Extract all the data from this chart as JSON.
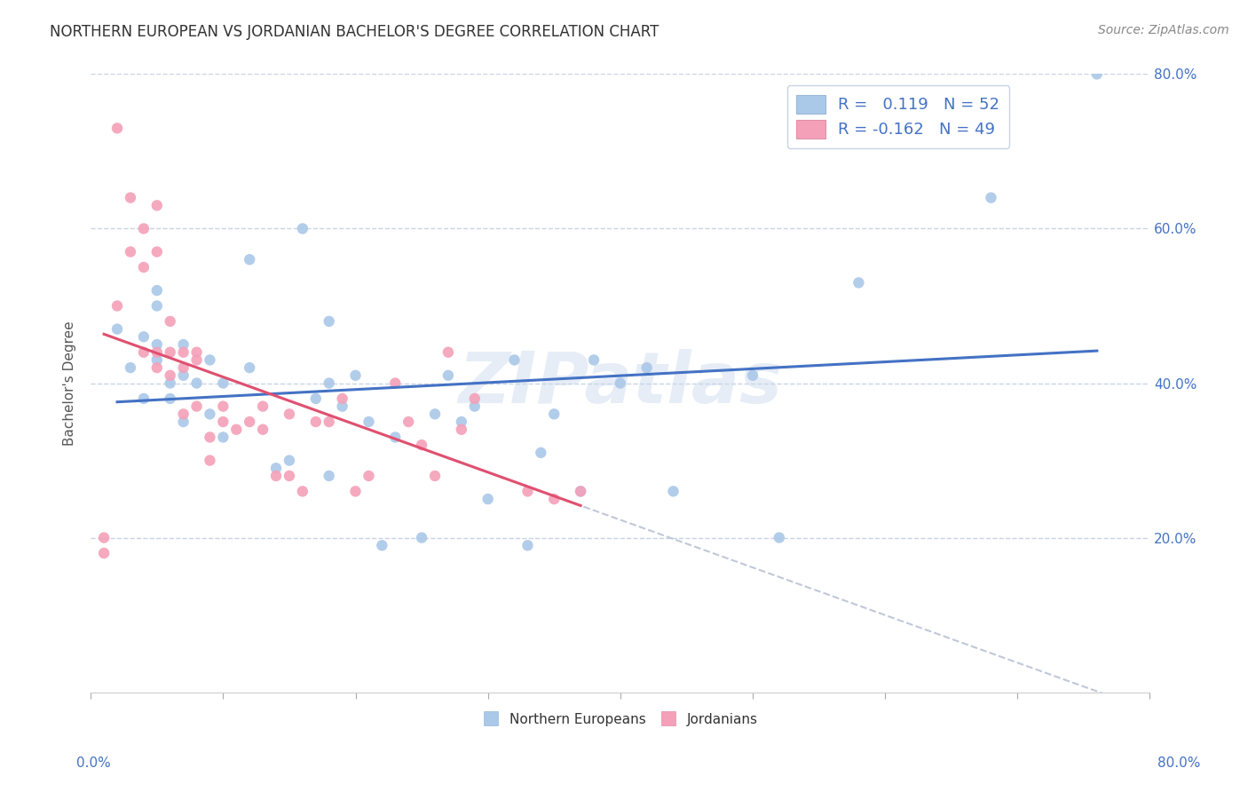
{
  "title": "NORTHERN EUROPEAN VS JORDANIAN BACHELOR'S DEGREE CORRELATION CHART",
  "source": "Source: ZipAtlas.com",
  "ylabel": "Bachelor's Degree",
  "xlim": [
    0.0,
    0.8
  ],
  "ylim": [
    0.0,
    0.8
  ],
  "xtick_vals": [
    0.0,
    0.1,
    0.2,
    0.3,
    0.4,
    0.5,
    0.6,
    0.7,
    0.8
  ],
  "ytick_vals": [
    0.2,
    0.4,
    0.6,
    0.8
  ],
  "ytick_labels": [
    "20.0%",
    "40.0%",
    "60.0%",
    "80.0%"
  ],
  "blue_color": "#aac8e8",
  "pink_color": "#f4a0b8",
  "blue_line_color": "#4472c4",
  "pink_line_color": "#e05070",
  "dashed_line_color": "#c0c8d8",
  "legend_blue_label": "R =   0.119   N = 52",
  "legend_pink_label": "R = -0.162   N = 49",
  "legend_bottom_blue": "Northern Europeans",
  "legend_bottom_pink": "Jordanians",
  "blue_scatter_x": [
    0.02,
    0.03,
    0.04,
    0.04,
    0.05,
    0.05,
    0.05,
    0.05,
    0.06,
    0.06,
    0.07,
    0.07,
    0.07,
    0.08,
    0.09,
    0.09,
    0.1,
    0.1,
    0.12,
    0.12,
    0.14,
    0.15,
    0.16,
    0.17,
    0.18,
    0.18,
    0.18,
    0.19,
    0.2,
    0.21,
    0.22,
    0.23,
    0.25,
    0.26,
    0.27,
    0.28,
    0.29,
    0.3,
    0.32,
    0.33,
    0.34,
    0.35,
    0.37,
    0.38,
    0.4,
    0.42,
    0.44,
    0.5,
    0.52,
    0.58,
    0.68,
    0.76
  ],
  "blue_scatter_y": [
    0.47,
    0.42,
    0.38,
    0.46,
    0.43,
    0.45,
    0.5,
    0.52,
    0.38,
    0.4,
    0.35,
    0.41,
    0.45,
    0.4,
    0.43,
    0.36,
    0.33,
    0.4,
    0.42,
    0.56,
    0.29,
    0.3,
    0.6,
    0.38,
    0.4,
    0.48,
    0.28,
    0.37,
    0.41,
    0.35,
    0.19,
    0.33,
    0.2,
    0.36,
    0.41,
    0.35,
    0.37,
    0.25,
    0.43,
    0.19,
    0.31,
    0.36,
    0.26,
    0.43,
    0.4,
    0.42,
    0.26,
    0.41,
    0.2,
    0.53,
    0.64,
    0.8
  ],
  "pink_scatter_x": [
    0.01,
    0.01,
    0.02,
    0.02,
    0.03,
    0.03,
    0.04,
    0.04,
    0.04,
    0.05,
    0.05,
    0.05,
    0.05,
    0.06,
    0.06,
    0.06,
    0.07,
    0.07,
    0.07,
    0.08,
    0.08,
    0.08,
    0.09,
    0.09,
    0.1,
    0.1,
    0.11,
    0.12,
    0.13,
    0.13,
    0.14,
    0.15,
    0.15,
    0.16,
    0.17,
    0.18,
    0.19,
    0.2,
    0.21,
    0.23,
    0.24,
    0.25,
    0.26,
    0.27,
    0.28,
    0.29,
    0.33,
    0.35,
    0.37
  ],
  "pink_scatter_y": [
    0.2,
    0.18,
    0.73,
    0.5,
    0.57,
    0.64,
    0.6,
    0.55,
    0.44,
    0.63,
    0.57,
    0.44,
    0.42,
    0.41,
    0.44,
    0.48,
    0.44,
    0.42,
    0.36,
    0.37,
    0.43,
    0.44,
    0.3,
    0.33,
    0.35,
    0.37,
    0.34,
    0.35,
    0.34,
    0.37,
    0.28,
    0.36,
    0.28,
    0.26,
    0.35,
    0.35,
    0.38,
    0.26,
    0.28,
    0.4,
    0.35,
    0.32,
    0.28,
    0.44,
    0.34,
    0.38,
    0.26,
    0.25,
    0.26
  ],
  "watermark": "ZIPatlas",
  "background_color": "#ffffff",
  "grid_color": "#c8d4e4",
  "title_fontsize": 12,
  "axis_fontsize": 11,
  "tick_fontsize": 11,
  "source_fontsize": 10
}
